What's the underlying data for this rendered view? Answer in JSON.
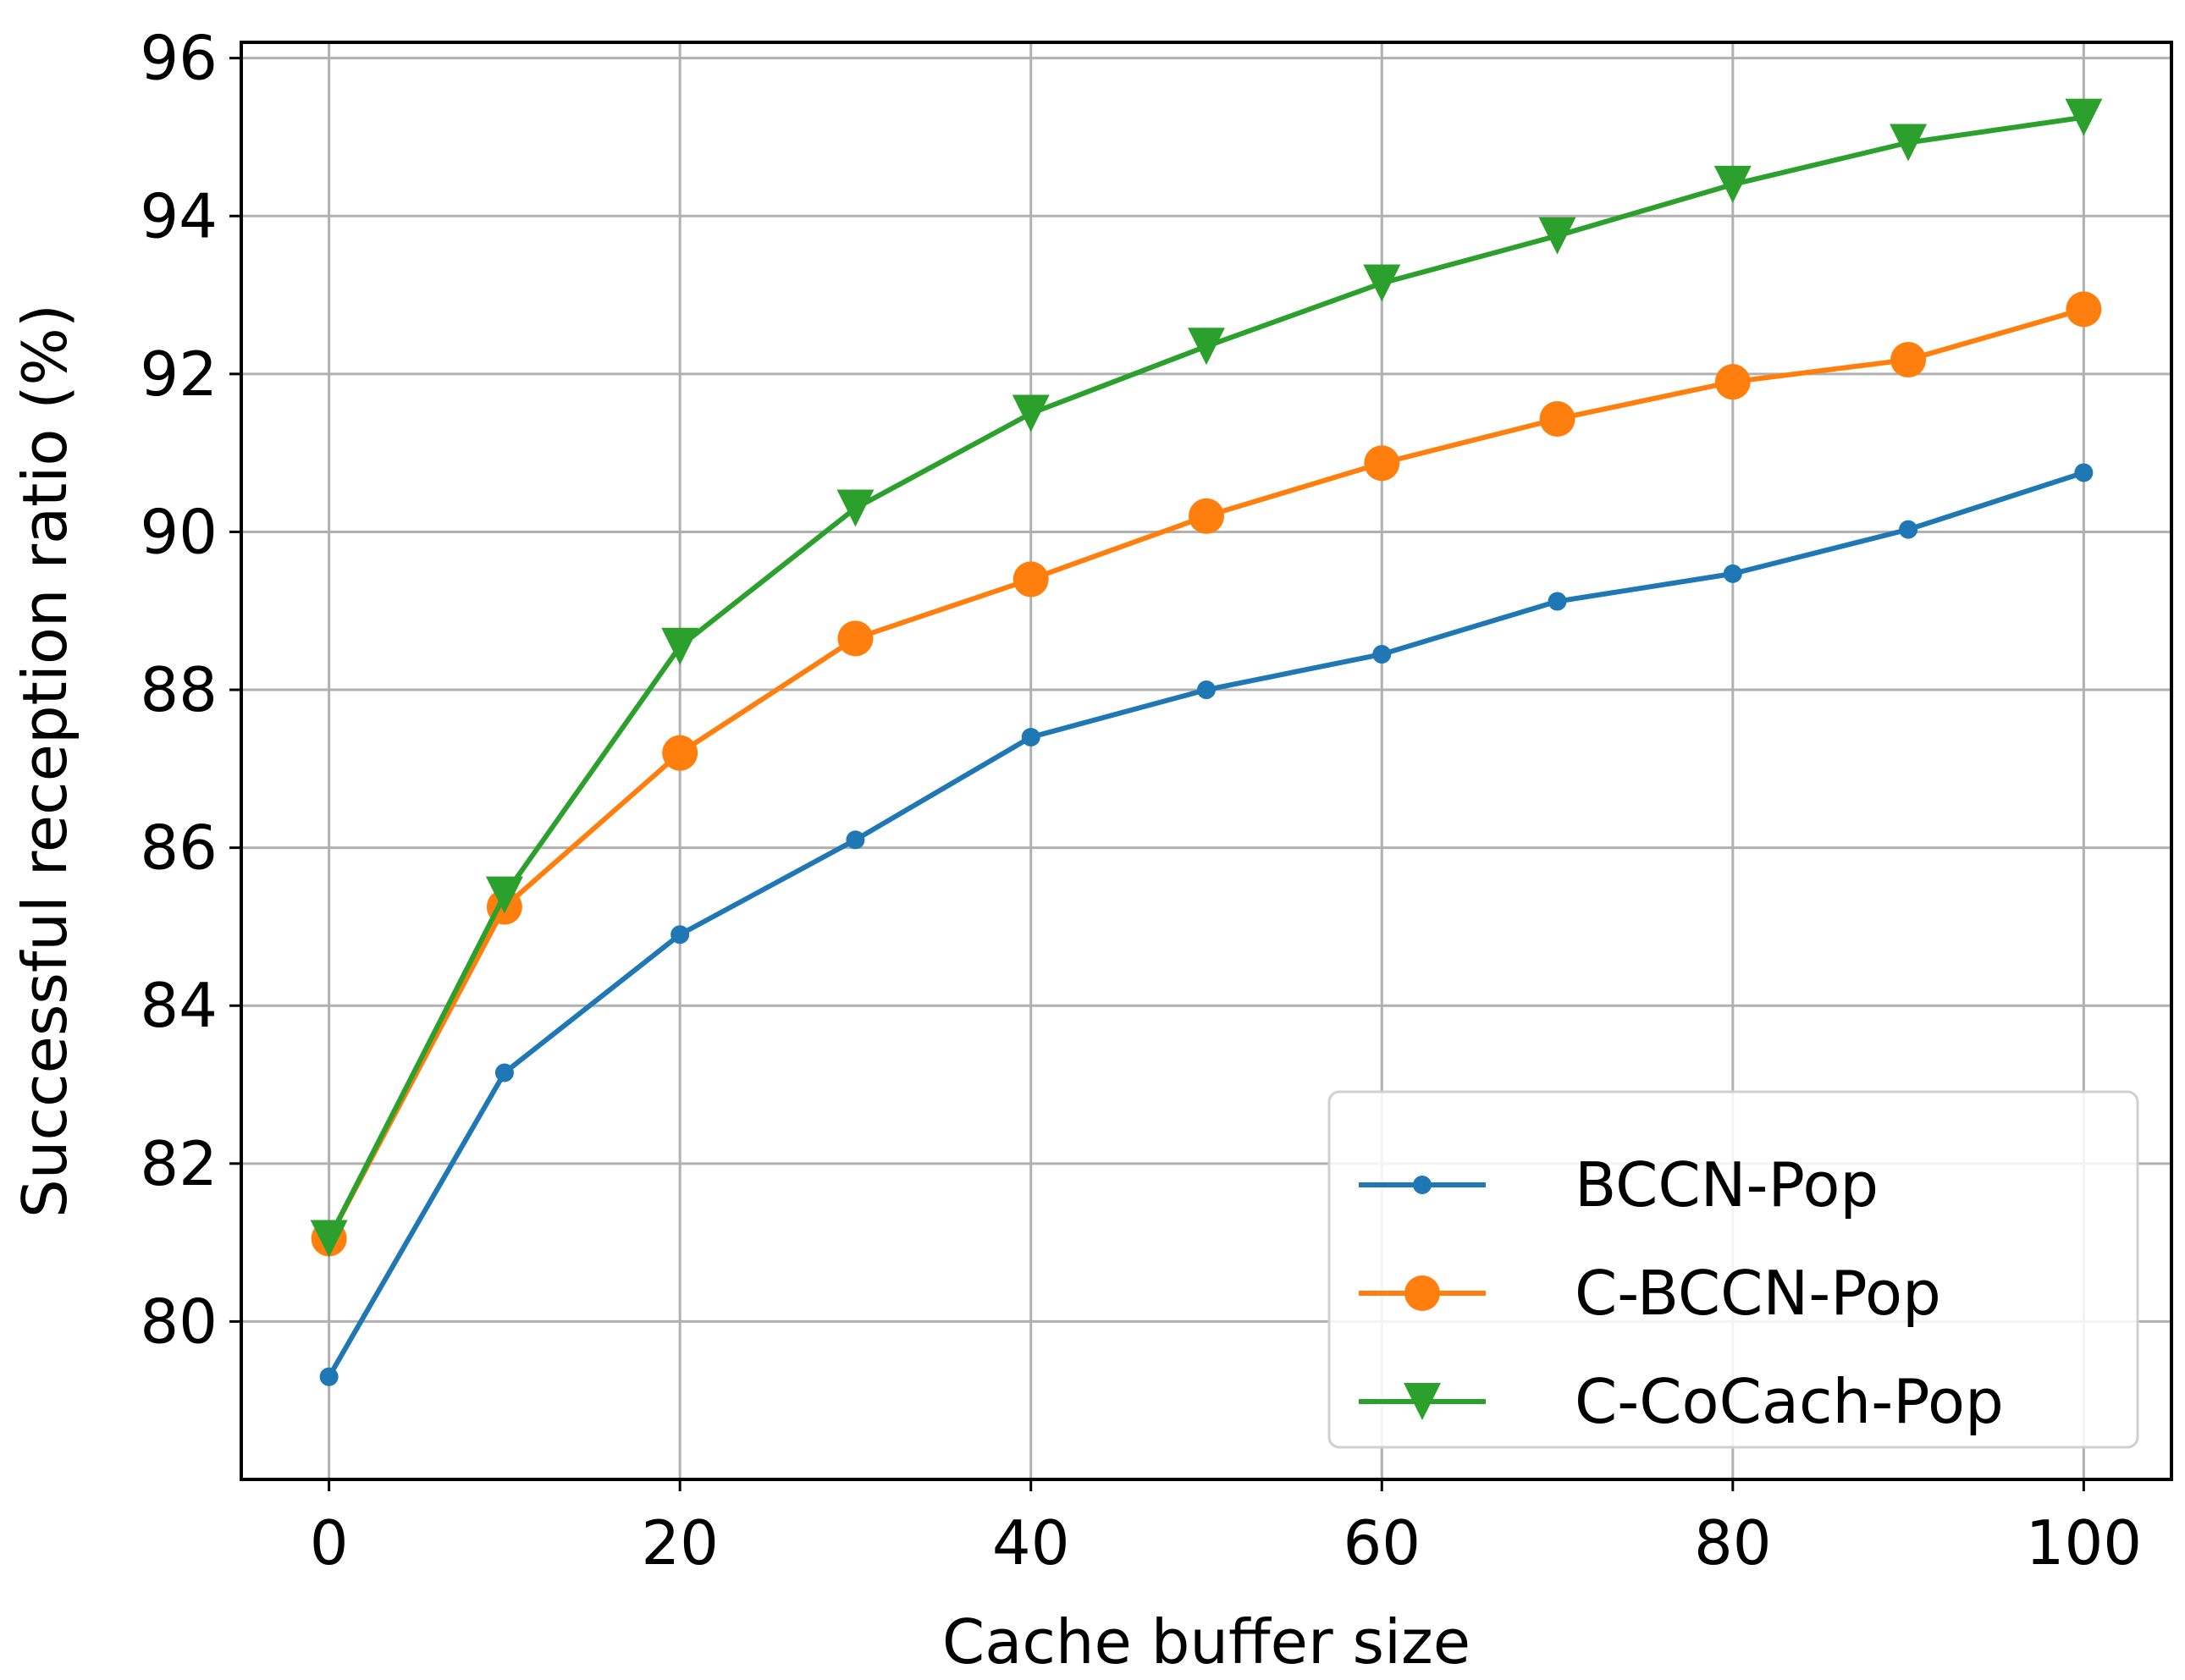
{
  "chart_data": {
    "type": "line",
    "title": "",
    "xlabel": "Cache buffer size",
    "ylabel": "Successful reception ratio (%)",
    "xlim": [
      -5,
      105
    ],
    "ylim": [
      78.0,
      96.2
    ],
    "x": [
      0,
      10,
      20,
      30,
      40,
      50,
      60,
      70,
      80,
      90,
      100
    ],
    "xticks": [
      0,
      20,
      40,
      60,
      80,
      100
    ],
    "xtick_labels": [
      "0",
      "20",
      "40",
      "60",
      "80",
      "100"
    ],
    "yticks": [
      80,
      82,
      84,
      86,
      88,
      90,
      92,
      94,
      96
    ],
    "ytick_labels": [
      "80",
      "82",
      "84",
      "86",
      "88",
      "90",
      "92",
      "94",
      "96"
    ],
    "grid": true,
    "legend_position": "bottom-right",
    "series": [
      {
        "name": "BCCN-Pop",
        "color": "#1f77b4",
        "marker": "dot",
        "values": [
          79.3,
          83.15,
          84.9,
          86.1,
          87.4,
          88.0,
          88.45,
          89.12,
          89.47,
          90.03,
          90.75
        ]
      },
      {
        "name": "C-BCCN-Pop",
        "color": "#ff7f0e",
        "marker": "circle",
        "values": [
          81.05,
          85.25,
          87.2,
          88.65,
          89.4,
          90.2,
          90.87,
          91.43,
          91.9,
          92.18,
          92.82
        ]
      },
      {
        "name": "C-CoCach-Pop",
        "color": "#2ca02c",
        "marker": "triangle-down",
        "values": [
          81.05,
          85.4,
          88.55,
          90.3,
          91.5,
          92.35,
          93.15,
          93.75,
          94.4,
          94.93,
          95.25
        ]
      }
    ]
  }
}
